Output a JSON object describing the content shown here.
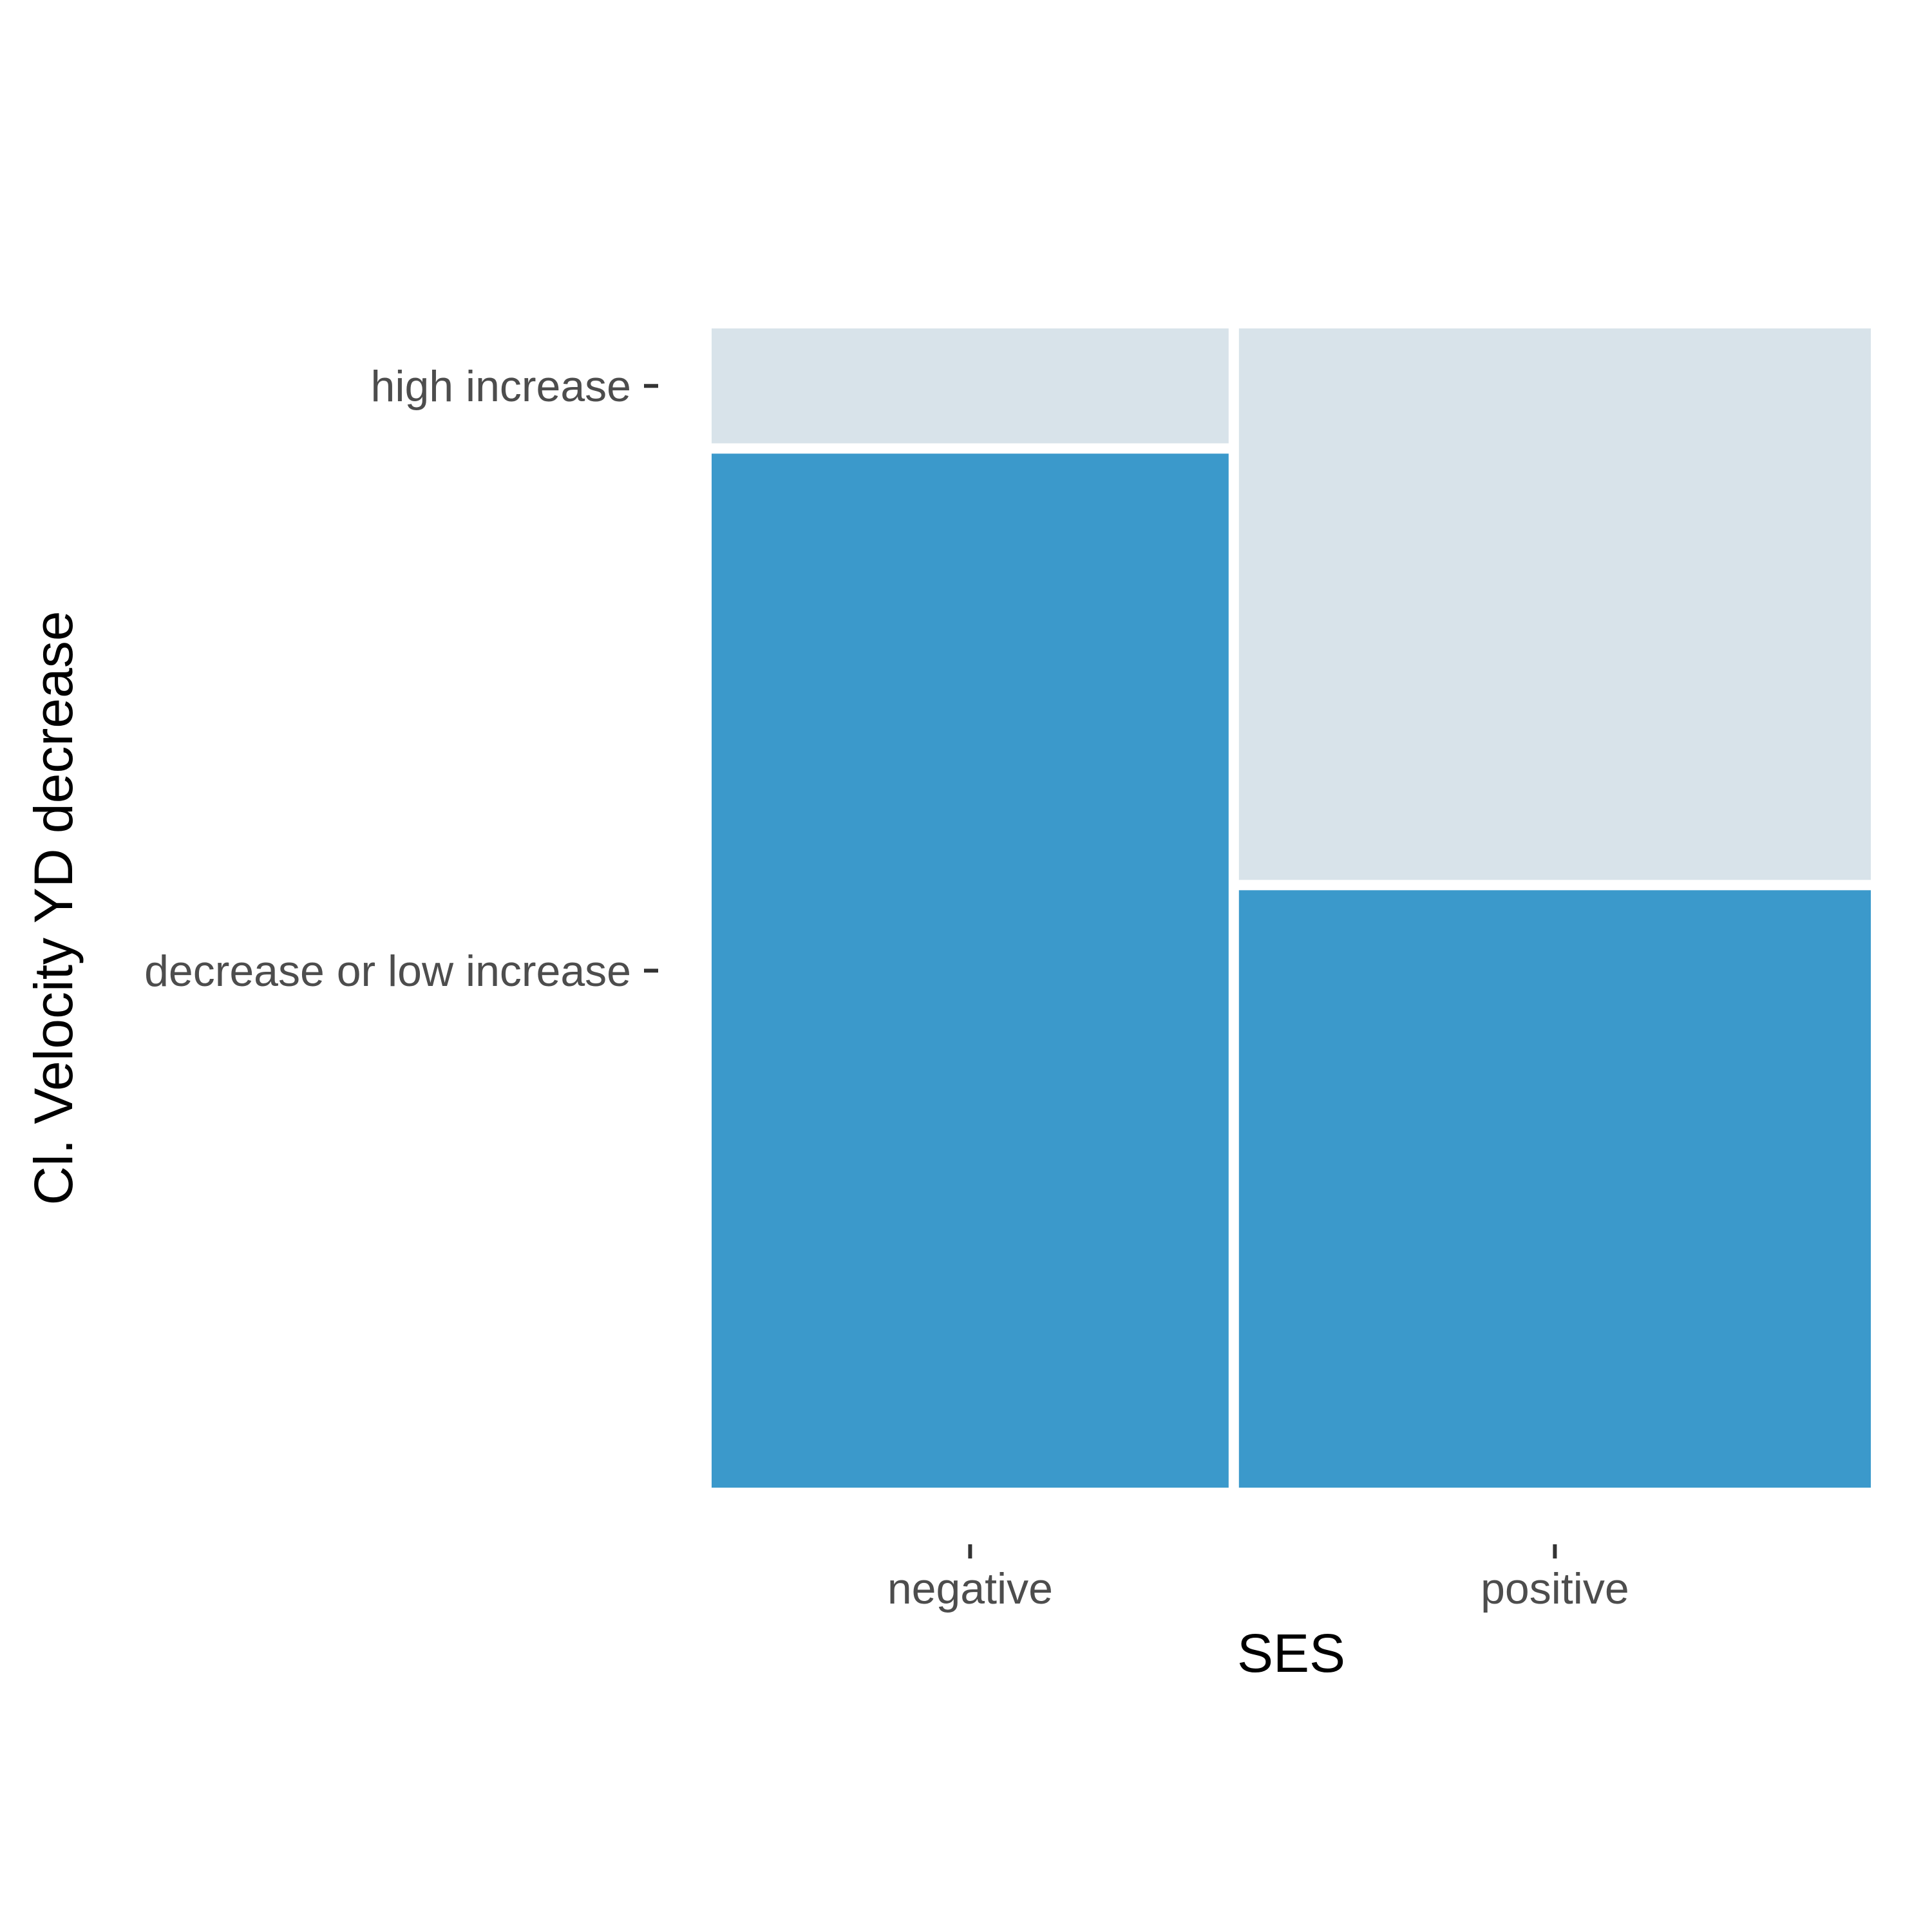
{
  "chart_data": {
    "type": "mosaic",
    "title": "",
    "xlabel": "SES",
    "ylabel": "Cl. Velocity YD decrease",
    "x_categories": [
      "negative",
      "positive"
    ],
    "x_widths": [
      0.45,
      0.55
    ],
    "y_categories": [
      "decrease or low increase",
      "high increase"
    ],
    "series": [
      {
        "name": "decrease or low increase",
        "values": [
          0.9,
          0.52
        ],
        "color": "#3b99cb"
      },
      {
        "name": "high increase",
        "values": [
          0.1,
          0.48
        ],
        "color": "#d8e3ea"
      }
    ],
    "ylim": [
      0,
      1
    ],
    "grid": false,
    "legend": "none"
  }
}
